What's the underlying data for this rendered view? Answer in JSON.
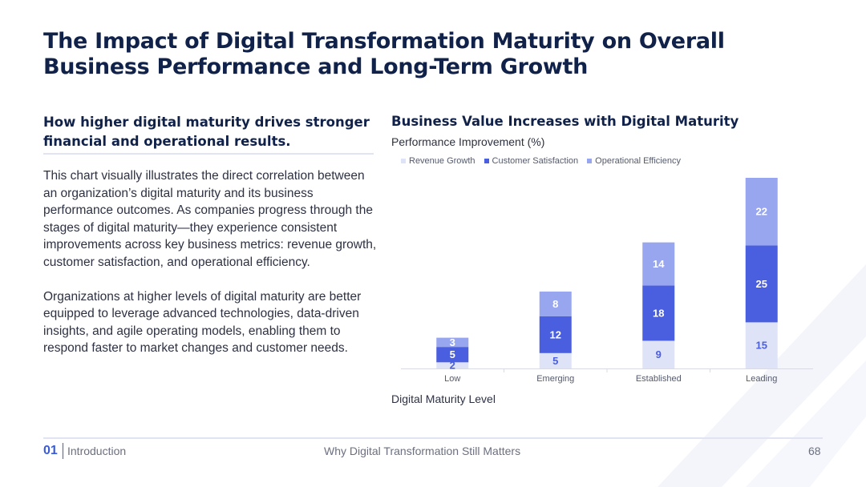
{
  "slide": {
    "title": "The Impact of Digital Transformation Maturity on Overall Business Performance and Long-Term Growth",
    "subhead": "How higher digital maturity drives stronger financial and operational results.",
    "paragraph1": "This chart visually illustrates the direct correlation between an organization’s digital maturity and its business performance outcomes. As companies progress through the stages of digital maturity—they experience consistent improvements across key business metrics: revenue growth, customer satisfaction, and operational efficiency.",
    "paragraph2": "Organizations at higher levels of digital maturity are better equipped to leverage advanced technologies, data-driven insights, and agile operating models, enabling them to respond faster to market changes and customer needs."
  },
  "footer": {
    "section_number": "01",
    "section_name": "Introduction",
    "center_text": "Why Digital Transformation Still Matters",
    "page_number": "68"
  },
  "colors": {
    "revenue": "#dfe3f8",
    "satisfaction": "#4a5ee0",
    "efficiency": "#98a6f0",
    "accent": "#3a5bd9"
  },
  "chart_data": {
    "type": "bar",
    "stacked": true,
    "title": "Business Value Increases with Digital Maturity",
    "ylabel": "Performance Improvement (%)",
    "xlabel": "Digital Maturity Level",
    "categories": [
      "Low",
      "Emerging",
      "Established",
      "Leading"
    ],
    "series": [
      {
        "name": "Revenue Growth",
        "values": [
          2,
          5,
          9,
          15
        ]
      },
      {
        "name": "Customer Satisfaction",
        "values": [
          5,
          12,
          18,
          25
        ]
      },
      {
        "name": "Operational Efficiency",
        "values": [
          3,
          8,
          14,
          22
        ]
      }
    ],
    "ylim": [
      0,
      62
    ],
    "legend_position": "top-left",
    "grid": false
  }
}
